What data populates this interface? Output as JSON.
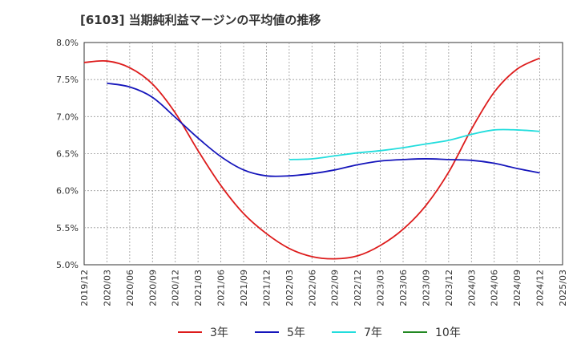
{
  "title": "[6103]  当期純利益マージンの平均値の推移",
  "chart_data": {
    "type": "line",
    "title": "[6103]  当期純利益マージンの平均値の推移",
    "xlabel": "",
    "ylabel": "",
    "ylim": [
      5.0,
      8.0
    ],
    "y_ticks": [
      "5.0%",
      "5.5%",
      "6.0%",
      "6.5%",
      "7.0%",
      "7.5%",
      "8.0%"
    ],
    "y_tick_values": [
      5.0,
      5.5,
      6.0,
      6.5,
      7.0,
      7.5,
      8.0
    ],
    "x_ticks": [
      "2019/12",
      "2020/03",
      "2020/06",
      "2020/09",
      "2020/12",
      "2021/03",
      "2021/06",
      "2021/09",
      "2021/12",
      "2022/03",
      "2022/06",
      "2022/09",
      "2022/12",
      "2023/03",
      "2023/06",
      "2023/09",
      "2023/12",
      "2024/03",
      "2024/06",
      "2024/09",
      "2024/12",
      "2025/03"
    ],
    "grid": true,
    "legend_position": "bottom",
    "series": [
      {
        "name": "3年",
        "color": "#dd1c1c",
        "x": [
          "2019/12",
          "2020/03",
          "2020/06",
          "2020/09",
          "2020/12",
          "2021/03",
          "2021/06",
          "2021/09",
          "2021/12",
          "2022/03",
          "2022/06",
          "2022/09",
          "2022/12",
          "2023/03",
          "2023/06",
          "2023/09",
          "2023/12",
          "2024/03",
          "2024/06",
          "2024/09",
          "2024/12"
        ],
        "values": [
          7.73,
          7.75,
          7.66,
          7.44,
          7.05,
          6.54,
          6.07,
          5.69,
          5.42,
          5.22,
          5.11,
          5.08,
          5.12,
          5.26,
          5.48,
          5.8,
          6.25,
          6.83,
          7.33,
          7.64,
          7.79
        ]
      },
      {
        "name": "5年",
        "color": "#1515bb",
        "x": [
          "2020/03",
          "2020/06",
          "2020/09",
          "2020/12",
          "2021/03",
          "2021/06",
          "2021/09",
          "2021/12",
          "2022/03",
          "2022/06",
          "2022/09",
          "2022/12",
          "2023/03",
          "2023/06",
          "2023/09",
          "2023/12",
          "2024/03",
          "2024/06",
          "2024/09",
          "2024/12"
        ],
        "values": [
          7.45,
          7.4,
          7.26,
          6.99,
          6.71,
          6.46,
          6.28,
          6.2,
          6.2,
          6.23,
          6.28,
          6.35,
          6.4,
          6.42,
          6.43,
          6.42,
          6.41,
          6.37,
          6.3,
          6.24
        ]
      },
      {
        "name": "7年",
        "color": "#22dddd",
        "x": [
          "2022/03",
          "2022/06",
          "2022/09",
          "2022/12",
          "2023/03",
          "2023/06",
          "2023/09",
          "2023/12",
          "2024/03",
          "2024/06",
          "2024/09",
          "2024/12"
        ],
        "values": [
          6.42,
          6.43,
          6.47,
          6.51,
          6.54,
          6.58,
          6.63,
          6.68,
          6.76,
          6.82,
          6.82,
          6.8
        ]
      },
      {
        "name": "10年",
        "color": "#228822",
        "x": [],
        "values": []
      }
    ]
  }
}
